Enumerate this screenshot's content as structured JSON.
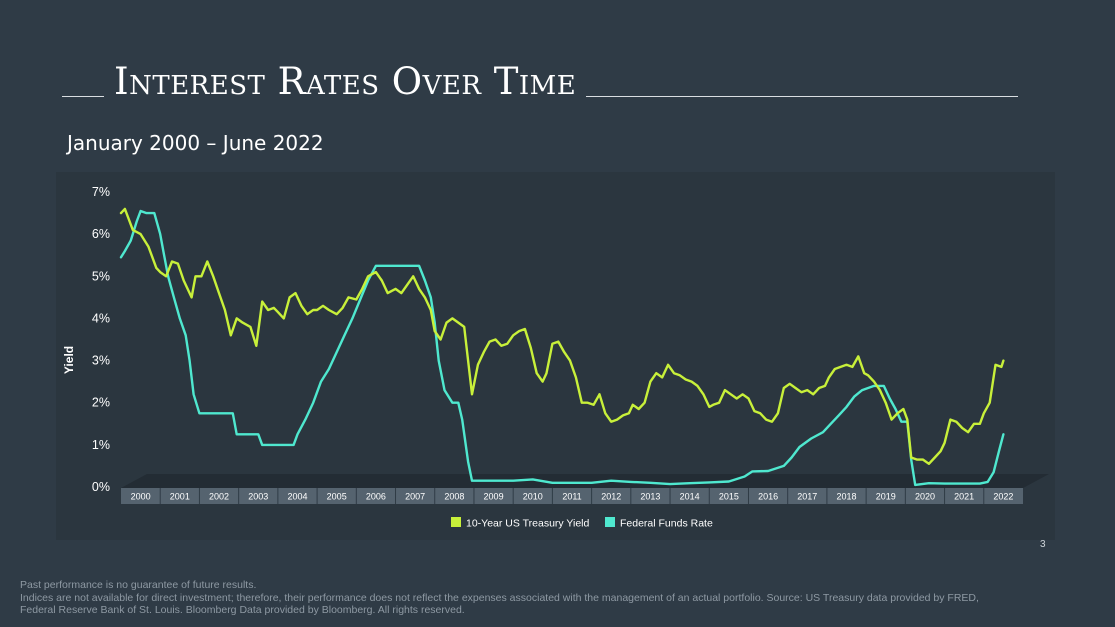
{
  "slide": {
    "title": "Interest Rates Over Time",
    "subtitle": "January 2000 – June 2022",
    "page_number": "3",
    "disclaimer_line1": "Past performance is no guarantee of future results.",
    "disclaimer_line2": "Indices are not available for direct investment; therefore, their performance does not reflect the expenses associated with the management of an actual portfolio. Source: US Treasury data provided by FRED, Federal Reserve Bank of St. Louis. Bloomberg Data provided by Bloomberg. All rights reserved."
  },
  "colors": {
    "background": "#2f3b46",
    "panel": "#2b363f",
    "treasury": "#c8f03a",
    "fed": "#4fe8cf",
    "axis_band": "#55636f"
  },
  "chart_data": {
    "type": "line",
    "title": "",
    "ylabel": "Yield",
    "xlabel": "",
    "ylim": [
      0,
      7
    ],
    "yticks": [
      "0%",
      "1%",
      "2%",
      "3%",
      "4%",
      "5%",
      "6%",
      "7%"
    ],
    "categories": [
      "2000",
      "2001",
      "2002",
      "2003",
      "2004",
      "2005",
      "2006",
      "2007",
      "2008",
      "2009",
      "2010",
      "2011",
      "2012",
      "2013",
      "2014",
      "2015",
      "2016",
      "2017",
      "2018",
      "2019",
      "2020",
      "2021",
      "2022"
    ],
    "legend_position": "bottom",
    "series": [
      {
        "name": "10-Year US Treasury Yield",
        "points": [
          [
            2000.0,
            6.5
          ],
          [
            2000.1,
            6.6
          ],
          [
            2000.3,
            6.1
          ],
          [
            2000.5,
            6.0
          ],
          [
            2000.7,
            5.7
          ],
          [
            2000.9,
            5.2
          ],
          [
            2001.0,
            5.1
          ],
          [
            2001.15,
            5.0
          ],
          [
            2001.3,
            5.35
          ],
          [
            2001.45,
            5.3
          ],
          [
            2001.6,
            4.9
          ],
          [
            2001.8,
            4.5
          ],
          [
            2001.9,
            5.0
          ],
          [
            2002.05,
            5.0
          ],
          [
            2002.2,
            5.35
          ],
          [
            2002.35,
            5.0
          ],
          [
            2002.5,
            4.6
          ],
          [
            2002.65,
            4.2
          ],
          [
            2002.8,
            3.6
          ],
          [
            2002.95,
            4.0
          ],
          [
            2003.1,
            3.9
          ],
          [
            2003.3,
            3.8
          ],
          [
            2003.45,
            3.35
          ],
          [
            2003.6,
            4.4
          ],
          [
            2003.75,
            4.2
          ],
          [
            2003.9,
            4.25
          ],
          [
            2004.0,
            4.15
          ],
          [
            2004.15,
            4.0
          ],
          [
            2004.3,
            4.5
          ],
          [
            2004.45,
            4.6
          ],
          [
            2004.6,
            4.3
          ],
          [
            2004.75,
            4.1
          ],
          [
            2004.9,
            4.2
          ],
          [
            2005.0,
            4.2
          ],
          [
            2005.15,
            4.3
          ],
          [
            2005.3,
            4.2
          ],
          [
            2005.5,
            4.1
          ],
          [
            2005.65,
            4.25
          ],
          [
            2005.8,
            4.5
          ],
          [
            2006.0,
            4.45
          ],
          [
            2006.15,
            4.7
          ],
          [
            2006.3,
            5.0
          ],
          [
            2006.5,
            5.1
          ],
          [
            2006.65,
            4.9
          ],
          [
            2006.8,
            4.6
          ],
          [
            2007.0,
            4.7
          ],
          [
            2007.15,
            4.6
          ],
          [
            2007.3,
            4.8
          ],
          [
            2007.45,
            5.0
          ],
          [
            2007.6,
            4.7
          ],
          [
            2007.75,
            4.5
          ],
          [
            2007.9,
            4.2
          ],
          [
            2008.0,
            3.7
          ],
          [
            2008.15,
            3.5
          ],
          [
            2008.3,
            3.9
          ],
          [
            2008.45,
            4.0
          ],
          [
            2008.6,
            3.9
          ],
          [
            2008.75,
            3.8
          ],
          [
            2008.85,
            3.0
          ],
          [
            2008.95,
            2.2
          ],
          [
            2009.1,
            2.9
          ],
          [
            2009.25,
            3.2
          ],
          [
            2009.4,
            3.45
          ],
          [
            2009.55,
            3.5
          ],
          [
            2009.7,
            3.35
          ],
          [
            2009.85,
            3.4
          ],
          [
            2010.0,
            3.6
          ],
          [
            2010.15,
            3.7
          ],
          [
            2010.3,
            3.75
          ],
          [
            2010.45,
            3.3
          ],
          [
            2010.6,
            2.7
          ],
          [
            2010.75,
            2.5
          ],
          [
            2010.85,
            2.7
          ],
          [
            2011.0,
            3.4
          ],
          [
            2011.15,
            3.45
          ],
          [
            2011.3,
            3.2
          ],
          [
            2011.45,
            3.0
          ],
          [
            2011.6,
            2.6
          ],
          [
            2011.75,
            2.0
          ],
          [
            2011.9,
            2.0
          ],
          [
            2012.05,
            1.95
          ],
          [
            2012.2,
            2.2
          ],
          [
            2012.35,
            1.75
          ],
          [
            2012.5,
            1.55
          ],
          [
            2012.65,
            1.6
          ],
          [
            2012.8,
            1.7
          ],
          [
            2012.95,
            1.75
          ],
          [
            2013.05,
            1.95
          ],
          [
            2013.2,
            1.85
          ],
          [
            2013.35,
            2.0
          ],
          [
            2013.5,
            2.5
          ],
          [
            2013.65,
            2.7
          ],
          [
            2013.8,
            2.6
          ],
          [
            2013.95,
            2.9
          ],
          [
            2014.1,
            2.7
          ],
          [
            2014.25,
            2.65
          ],
          [
            2014.4,
            2.55
          ],
          [
            2014.55,
            2.5
          ],
          [
            2014.7,
            2.4
          ],
          [
            2014.85,
            2.2
          ],
          [
            2015.0,
            1.9
          ],
          [
            2015.1,
            1.95
          ],
          [
            2015.25,
            2.0
          ],
          [
            2015.4,
            2.3
          ],
          [
            2015.55,
            2.2
          ],
          [
            2015.7,
            2.1
          ],
          [
            2015.85,
            2.2
          ],
          [
            2016.0,
            2.1
          ],
          [
            2016.15,
            1.8
          ],
          [
            2016.3,
            1.75
          ],
          [
            2016.45,
            1.6
          ],
          [
            2016.6,
            1.55
          ],
          [
            2016.75,
            1.75
          ],
          [
            2016.9,
            2.35
          ],
          [
            2017.05,
            2.45
          ],
          [
            2017.2,
            2.35
          ],
          [
            2017.35,
            2.25
          ],
          [
            2017.5,
            2.3
          ],
          [
            2017.65,
            2.2
          ],
          [
            2017.8,
            2.35
          ],
          [
            2017.95,
            2.4
          ],
          [
            2018.05,
            2.6
          ],
          [
            2018.2,
            2.8
          ],
          [
            2018.35,
            2.85
          ],
          [
            2018.5,
            2.9
          ],
          [
            2018.65,
            2.85
          ],
          [
            2018.8,
            3.1
          ],
          [
            2018.95,
            2.7
          ],
          [
            2019.05,
            2.65
          ],
          [
            2019.2,
            2.5
          ],
          [
            2019.35,
            2.3
          ],
          [
            2019.5,
            2.0
          ],
          [
            2019.65,
            1.6
          ],
          [
            2019.8,
            1.75
          ],
          [
            2019.95,
            1.85
          ],
          [
            2020.05,
            1.6
          ],
          [
            2020.15,
            0.7
          ],
          [
            2020.3,
            0.65
          ],
          [
            2020.45,
            0.65
          ],
          [
            2020.6,
            0.55
          ],
          [
            2020.75,
            0.7
          ],
          [
            2020.9,
            0.85
          ],
          [
            2021.0,
            1.05
          ],
          [
            2021.15,
            1.6
          ],
          [
            2021.3,
            1.55
          ],
          [
            2021.45,
            1.4
          ],
          [
            2021.6,
            1.3
          ],
          [
            2021.75,
            1.5
          ],
          [
            2021.9,
            1.5
          ],
          [
            2022.0,
            1.75
          ],
          [
            2022.15,
            2.0
          ],
          [
            2022.3,
            2.9
          ],
          [
            2022.45,
            2.85
          ],
          [
            2022.5,
            3.0
          ]
        ]
      },
      {
        "name": "Federal Funds Rate",
        "points": [
          [
            2000.0,
            5.45
          ],
          [
            2000.1,
            5.6
          ],
          [
            2000.25,
            5.85
          ],
          [
            2000.4,
            6.3
          ],
          [
            2000.5,
            6.55
          ],
          [
            2000.65,
            6.5
          ],
          [
            2000.85,
            6.5
          ],
          [
            2001.0,
            6.0
          ],
          [
            2001.1,
            5.5
          ],
          [
            2001.2,
            5.0
          ],
          [
            2001.35,
            4.5
          ],
          [
            2001.5,
            4.0
          ],
          [
            2001.65,
            3.6
          ],
          [
            2001.75,
            3.0
          ],
          [
            2001.85,
            2.2
          ],
          [
            2002.0,
            1.75
          ],
          [
            2002.3,
            1.75
          ],
          [
            2002.6,
            1.75
          ],
          [
            2002.85,
            1.75
          ],
          [
            2002.95,
            1.25
          ],
          [
            2003.2,
            1.25
          ],
          [
            2003.5,
            1.25
          ],
          [
            2003.6,
            1.0
          ],
          [
            2003.9,
            1.0
          ],
          [
            2004.1,
            1.0
          ],
          [
            2004.4,
            1.0
          ],
          [
            2004.5,
            1.25
          ],
          [
            2004.7,
            1.6
          ],
          [
            2004.9,
            2.0
          ],
          [
            2005.1,
            2.5
          ],
          [
            2005.3,
            2.8
          ],
          [
            2005.5,
            3.2
          ],
          [
            2005.7,
            3.6
          ],
          [
            2005.9,
            4.0
          ],
          [
            2006.1,
            4.45
          ],
          [
            2006.3,
            4.9
          ],
          [
            2006.5,
            5.25
          ],
          [
            2006.8,
            5.25
          ],
          [
            2007.0,
            5.25
          ],
          [
            2007.3,
            5.25
          ],
          [
            2007.6,
            5.25
          ],
          [
            2007.75,
            4.9
          ],
          [
            2007.9,
            4.5
          ],
          [
            2008.0,
            3.9
          ],
          [
            2008.1,
            3.0
          ],
          [
            2008.25,
            2.3
          ],
          [
            2008.45,
            2.0
          ],
          [
            2008.6,
            2.0
          ],
          [
            2008.7,
            1.6
          ],
          [
            2008.85,
            0.6
          ],
          [
            2008.95,
            0.15
          ],
          [
            2009.2,
            0.15
          ],
          [
            2009.6,
            0.15
          ],
          [
            2010.0,
            0.15
          ],
          [
            2010.5,
            0.18
          ],
          [
            2011.0,
            0.1
          ],
          [
            2011.5,
            0.1
          ],
          [
            2012.0,
            0.1
          ],
          [
            2012.5,
            0.15
          ],
          [
            2013.0,
            0.12
          ],
          [
            2013.5,
            0.1
          ],
          [
            2014.0,
            0.07
          ],
          [
            2014.5,
            0.09
          ],
          [
            2015.0,
            0.11
          ],
          [
            2015.5,
            0.13
          ],
          [
            2015.9,
            0.25
          ],
          [
            2016.1,
            0.37
          ],
          [
            2016.5,
            0.38
          ],
          [
            2016.9,
            0.5
          ],
          [
            2017.1,
            0.7
          ],
          [
            2017.3,
            0.95
          ],
          [
            2017.6,
            1.15
          ],
          [
            2017.9,
            1.3
          ],
          [
            2018.1,
            1.5
          ],
          [
            2018.3,
            1.7
          ],
          [
            2018.5,
            1.9
          ],
          [
            2018.7,
            2.15
          ],
          [
            2018.9,
            2.3
          ],
          [
            2019.2,
            2.4
          ],
          [
            2019.45,
            2.4
          ],
          [
            2019.6,
            2.1
          ],
          [
            2019.75,
            1.85
          ],
          [
            2019.9,
            1.55
          ],
          [
            2020.05,
            1.55
          ],
          [
            2020.15,
            0.65
          ],
          [
            2020.25,
            0.05
          ],
          [
            2020.6,
            0.09
          ],
          [
            2021.0,
            0.08
          ],
          [
            2021.5,
            0.08
          ],
          [
            2021.9,
            0.08
          ],
          [
            2022.1,
            0.12
          ],
          [
            2022.25,
            0.35
          ],
          [
            2022.4,
            0.9
          ],
          [
            2022.5,
            1.25
          ]
        ]
      }
    ]
  }
}
